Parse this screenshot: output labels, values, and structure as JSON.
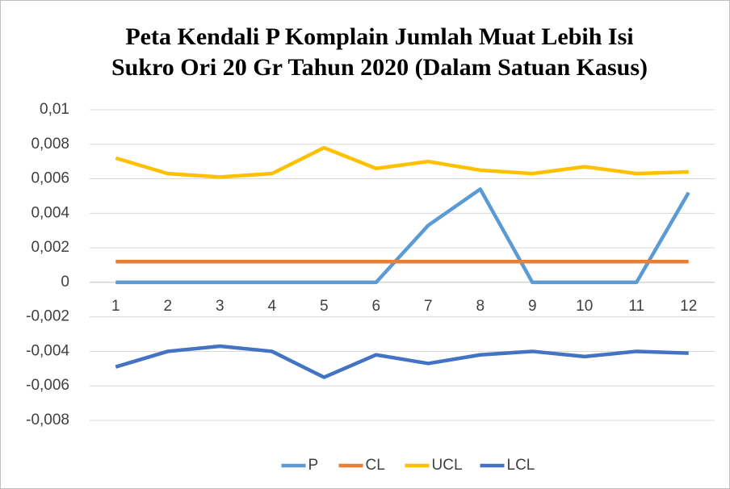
{
  "chart_data": {
    "type": "line",
    "title": [
      "Peta Kendali P Komplain Jumlah Muat Lebih Isi",
      "Sukro Ori 20 Gr Tahun 2020 (Dalam Satuan Kasus)"
    ],
    "categories": [
      "1",
      "2",
      "3",
      "4",
      "5",
      "6",
      "7",
      "8",
      "9",
      "10",
      "11",
      "12"
    ],
    "series": [
      {
        "name": "P",
        "color": "#5b9bd5",
        "values": [
          0,
          0,
          0,
          0,
          0,
          0,
          0.0033,
          0.0054,
          0,
          0,
          0,
          0.0052
        ]
      },
      {
        "name": "CL",
        "color": "#ed7d31",
        "values": [
          0.0012,
          0.0012,
          0.0012,
          0.0012,
          0.0012,
          0.0012,
          0.0012,
          0.0012,
          0.0012,
          0.0012,
          0.0012,
          0.0012
        ]
      },
      {
        "name": "UCL",
        "color": "#ffc000",
        "values": [
          0.0072,
          0.0063,
          0.0061,
          0.0063,
          0.0078,
          0.0066,
          0.007,
          0.0065,
          0.0063,
          0.0067,
          0.0063,
          0.0064
        ]
      },
      {
        "name": "LCL",
        "color": "#4472c4",
        "values": [
          -0.0049,
          -0.004,
          -0.0037,
          -0.004,
          -0.0055,
          -0.0042,
          -0.0047,
          -0.0042,
          -0.004,
          -0.0043,
          -0.004,
          -0.0041
        ]
      }
    ],
    "ylim": [
      -0.008,
      0.01
    ],
    "yticks": [
      {
        "value": -0.008,
        "label": "-0,008"
      },
      {
        "value": -0.006,
        "label": "-0,006"
      },
      {
        "value": -0.004,
        "label": "-0,004"
      },
      {
        "value": -0.002,
        "label": "-0,002"
      },
      0,
      {
        "value": 0.002,
        "label": "0,002"
      },
      {
        "value": 0.004,
        "label": "0,004"
      },
      {
        "value": 0.006,
        "label": "0,006"
      },
      {
        "value": 0.008,
        "label": "0,008"
      },
      {
        "value": 0.01,
        "label": "0,01"
      }
    ],
    "grid": true,
    "legend": "bottom"
  }
}
